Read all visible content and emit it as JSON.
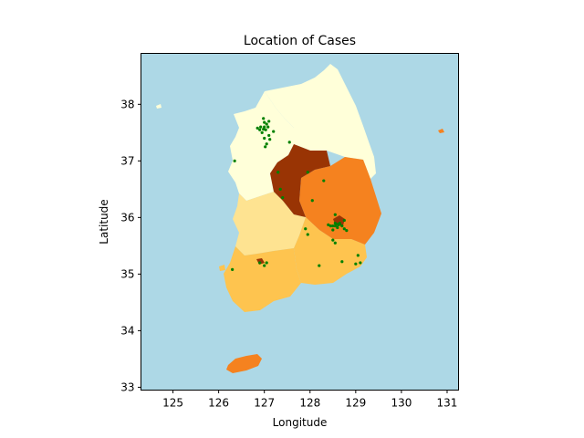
{
  "title": "Location of Cases",
  "xlabel": "Longitude",
  "ylabel": "Latitude",
  "colors": {
    "sea": "#add8e6",
    "case_points": "#008000",
    "land_lightest": "#ffffd9",
    "land_light": "#fee391",
    "land_mid": "#fec44f",
    "land_orange": "#f5821f",
    "land_dark": "#993404"
  },
  "chart_data": {
    "type": "scatter",
    "title": "Location of Cases",
    "xlabel": "Longitude",
    "ylabel": "Latitude",
    "xlim": [
      124.3,
      131.25
    ],
    "ylim": [
      32.95,
      38.9
    ],
    "xticks": [
      125,
      126,
      127,
      128,
      129,
      130,
      131
    ],
    "yticks": [
      33,
      34,
      35,
      36,
      37,
      38
    ],
    "grid": false,
    "series": [
      {
        "x": [
          126.98,
          127.0,
          126.95,
          127.03,
          127.05,
          126.9,
          127.1,
          127.0,
          126.98,
          127.12,
          127.08,
          127.2,
          127.05,
          127.02,
          126.92,
          127.1,
          127.0,
          126.85,
          127.3,
          127.55,
          127.95,
          128.3,
          128.75,
          128.55,
          128.6,
          128.5,
          128.7,
          128.65,
          128.55,
          128.75,
          128.45,
          128.62,
          128.8,
          128.5,
          128.4,
          128.6,
          128.55,
          128.65,
          127.4,
          127.35,
          127.9,
          127.95,
          128.05,
          126.35,
          126.3,
          126.9,
          127.0,
          127.05,
          129.05,
          129.1,
          129.0,
          128.7,
          128.2,
          128.55,
          128.5
        ],
        "y": [
          37.56,
          37.6,
          37.5,
          37.55,
          37.65,
          37.55,
          37.45,
          37.4,
          37.75,
          37.38,
          37.6,
          37.52,
          37.3,
          37.25,
          37.6,
          37.7,
          37.68,
          37.58,
          36.8,
          37.33,
          36.8,
          36.65,
          35.95,
          35.85,
          35.88,
          35.85,
          35.85,
          35.9,
          36.05,
          35.8,
          35.85,
          35.87,
          35.77,
          35.78,
          35.87,
          35.82,
          35.9,
          35.88,
          36.35,
          36.5,
          35.8,
          35.7,
          36.3,
          37.0,
          35.08,
          35.2,
          35.15,
          35.2,
          35.33,
          35.2,
          35.18,
          35.22,
          35.15,
          35.55,
          35.6
        ]
      }
    ]
  }
}
